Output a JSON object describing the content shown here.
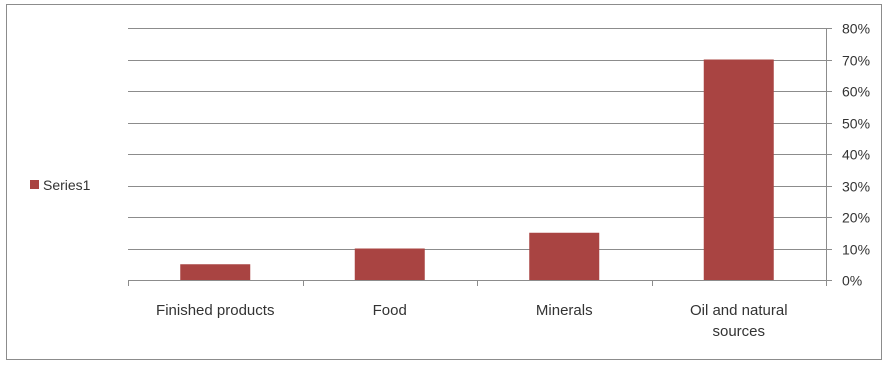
{
  "chart_data": {
    "type": "bar",
    "categories": [
      [
        "Finished products"
      ],
      [
        "Food"
      ],
      [
        "Minerals"
      ],
      [
        "Oil and natural",
        "sources"
      ]
    ],
    "series": [
      {
        "name": "Series1",
        "values": [
          0.05,
          0.1,
          0.15,
          0.7
        ],
        "color": "#a94442"
      }
    ],
    "ylim": [
      0,
      0.8
    ],
    "yticks": [
      "0%",
      "10%",
      "20%",
      "30%",
      "40%",
      "50%",
      "60%",
      "70%",
      "80%"
    ],
    "y_axis_side": "right",
    "grid": true,
    "legend": {
      "position": "left",
      "entries": [
        "Series1"
      ]
    }
  }
}
